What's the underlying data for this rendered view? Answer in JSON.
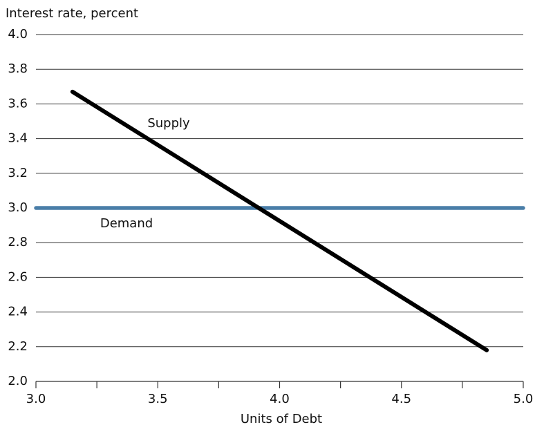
{
  "chart_data": {
    "type": "line",
    "title": "Interest rate, percent",
    "x_label": "Units of Debt",
    "series": [
      {
        "name": "Supply",
        "color": "#000000",
        "x": [
          3.15,
          4.85
        ],
        "values": [
          3.67,
          2.18
        ]
      },
      {
        "name": "Demand",
        "color": "#4a7ea8",
        "x": [
          3,
          5
        ],
        "values": [
          3,
          3
        ]
      }
    ],
    "xlim": [
      3,
      5
    ],
    "xticks": [
      {
        "value": 3,
        "label": "3.0"
      },
      3.5,
      {
        "value": 4,
        "label": "4.0"
      },
      4.5,
      {
        "value": 5,
        "label": "5.0"
      }
    ],
    "xminorticks": [
      3.25,
      3.75,
      4.25,
      4.75
    ],
    "ylim": [
      2,
      4
    ],
    "yticks": [
      {
        "value": 2,
        "label": "2.0"
      },
      2.2,
      2.4,
      2.6,
      2.8,
      {
        "value": 3,
        "label": "3.0"
      },
      3.2,
      3.4,
      3.6,
      3.8,
      {
        "value": 4,
        "label": "4.0"
      }
    ],
    "grid": true
  }
}
